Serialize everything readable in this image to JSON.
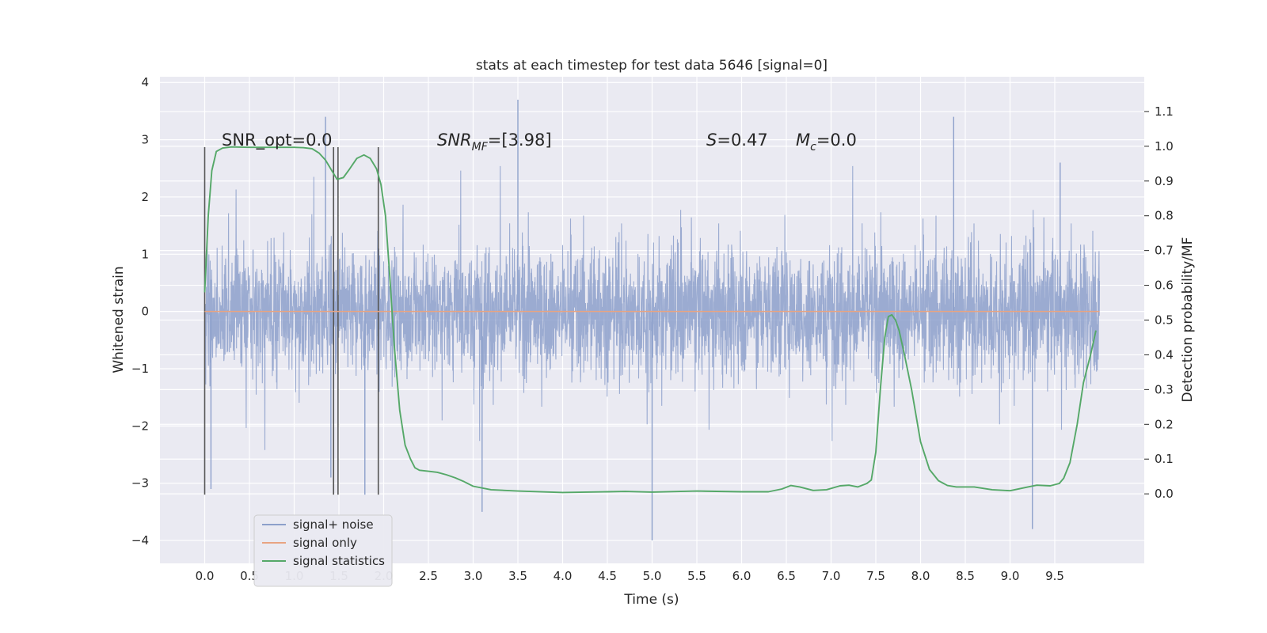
{
  "chart_data": {
    "type": "line",
    "title": "stats at each timestep for test data 5646 [signal=0]",
    "xlabel": "Time (s)",
    "ylabel": "Whitened strain",
    "y2label": "Detection probability/MF",
    "xlim": [
      -0.5,
      10.5
    ],
    "ylim": [
      -4.4,
      4.1
    ],
    "y2lim": [
      -0.2,
      1.2
    ],
    "x_ticks": [
      "0.0",
      "0.5",
      "1.0",
      "1.5",
      "2.0",
      "2.5",
      "3.0",
      "3.5",
      "4.0",
      "4.5",
      "5.0",
      "5.5",
      "6.0",
      "6.5",
      "7.0",
      "7.5",
      "8.0",
      "8.5",
      "9.0",
      "9.5"
    ],
    "y_ticks": [
      "−4",
      "−3",
      "−2",
      "−1",
      "0",
      "1",
      "2",
      "3",
      "4"
    ],
    "y2_ticks": [
      "0.0",
      "0.1",
      "0.2",
      "0.3",
      "0.4",
      "0.5",
      "0.6",
      "0.7",
      "0.8",
      "0.9",
      "1.0",
      "1.1"
    ],
    "grid": true,
    "legend_position": "lower-left",
    "annotations": {
      "snr_opt": "SNR_opt=0.0",
      "snr_mf_main": "SNR",
      "snr_mf_sub": "MF",
      "snr_mf_value": "=[3.98]",
      "s_main": "S",
      "s_value": "=0.47",
      "mc_main": "M",
      "mc_sub": "c",
      "mc_value": "=0.0"
    },
    "vertical_markers_s": [
      0.0,
      1.44,
      1.49,
      1.94
    ],
    "series": [
      {
        "name": "signal+ noise",
        "color": "#8da0cb",
        "axis": "left",
        "x_range": [
          0.0,
          10.0
        ],
        "envelope_typical": [
          -1.8,
          2.2
        ],
        "extremes": [
          [
            0.07,
            -3.1
          ],
          [
            1.35,
            3.4
          ],
          [
            1.41,
            -2.9
          ],
          [
            1.79,
            -3.2
          ],
          [
            3.1,
            -3.5
          ],
          [
            3.5,
            3.7
          ],
          [
            5.0,
            -4.0
          ],
          [
            8.37,
            3.4
          ],
          [
            9.25,
            -3.8
          ],
          [
            9.56,
            2.6
          ]
        ]
      },
      {
        "name": "signal only",
        "color": "#e8a482",
        "axis": "left",
        "x": [
          0.0,
          10.0
        ],
        "y": [
          0.0,
          0.0
        ]
      },
      {
        "name": "signal statistics",
        "color": "#55a868",
        "axis": "right",
        "x": [
          0.0,
          0.04,
          0.08,
          0.13,
          0.2,
          0.3,
          0.5,
          0.8,
          1.0,
          1.1,
          1.2,
          1.28,
          1.35,
          1.42,
          1.48,
          1.55,
          1.62,
          1.7,
          1.78,
          1.85,
          1.92,
          1.97,
          2.02,
          2.07,
          2.12,
          2.18,
          2.24,
          2.3,
          2.35,
          2.4,
          2.5,
          2.6,
          2.7,
          2.8,
          2.9,
          3.0,
          3.2,
          3.5,
          4.0,
          4.5,
          4.7,
          5.0,
          5.5,
          6.0,
          6.3,
          6.45,
          6.55,
          6.65,
          6.8,
          6.95,
          7.1,
          7.2,
          7.3,
          7.4,
          7.45,
          7.5,
          7.55,
          7.6,
          7.64,
          7.68,
          7.72,
          7.76,
          7.82,
          7.9,
          8.0,
          8.1,
          8.2,
          8.3,
          8.4,
          8.6,
          8.8,
          9.0,
          9.2,
          9.3,
          9.45,
          9.55,
          9.6,
          9.67,
          9.75,
          9.82,
          9.9,
          9.96
        ],
        "y": [
          0.58,
          0.8,
          0.93,
          0.985,
          0.995,
          0.998,
          0.997,
          0.997,
          0.997,
          0.996,
          0.993,
          0.98,
          0.96,
          0.93,
          0.905,
          0.91,
          0.935,
          0.965,
          0.975,
          0.965,
          0.935,
          0.89,
          0.8,
          0.62,
          0.42,
          0.24,
          0.14,
          0.1,
          0.075,
          0.068,
          0.065,
          0.062,
          0.055,
          0.046,
          0.035,
          0.022,
          0.012,
          0.008,
          0.004,
          0.006,
          0.007,
          0.005,
          0.008,
          0.006,
          0.006,
          0.014,
          0.024,
          0.02,
          0.01,
          0.012,
          0.023,
          0.025,
          0.02,
          0.03,
          0.04,
          0.12,
          0.3,
          0.45,
          0.51,
          0.515,
          0.5,
          0.47,
          0.4,
          0.3,
          0.15,
          0.07,
          0.038,
          0.024,
          0.02,
          0.02,
          0.012,
          0.009,
          0.02,
          0.025,
          0.023,
          0.03,
          0.045,
          0.09,
          0.2,
          0.32,
          0.4,
          0.47
        ]
      }
    ]
  }
}
